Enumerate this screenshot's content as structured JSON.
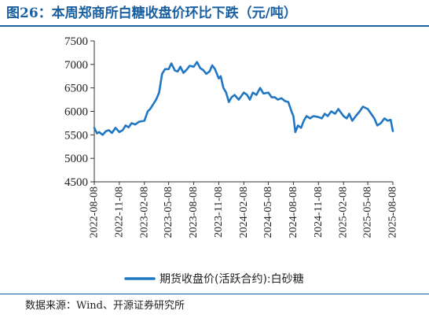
{
  "header": {
    "title": "图26：本周郑商所白糖收盘价环比下跌（元/吨）"
  },
  "footer": {
    "source": "数据来源：Wind、开源证券研究所"
  },
  "colors": {
    "accent": "#1a5fa0",
    "series": "#1f77c4"
  },
  "chart_data": {
    "type": "line",
    "title": "",
    "xlabel": "",
    "ylabel": "",
    "ylim": [
      4500,
      7500
    ],
    "yticks": [
      4500,
      5000,
      5500,
      6000,
      6500,
      7000,
      7500
    ],
    "xlim": [
      "2022-08-08",
      "2025-08-08"
    ],
    "xticks": [
      "2022-08-08",
      "2022-11-08",
      "2023-02-08",
      "2023-05-08",
      "2023-08-08",
      "2023-11-08",
      "2024-02-08",
      "2024-05-08",
      "2024-08-08",
      "2024-11-08",
      "2025-02-08",
      "2025-05-08",
      "2025-08-08"
    ],
    "grid": false,
    "legend_position": "bottom",
    "series": [
      {
        "name": "期货收盘价(活跃合约):白砂糖",
        "x": [
          "2022-08-08",
          "2022-08-18",
          "2022-08-26",
          "2022-09-08",
          "2022-09-20",
          "2022-10-01",
          "2022-10-12",
          "2022-10-25",
          "2022-11-08",
          "2022-11-20",
          "2022-12-01",
          "2022-12-12",
          "2022-12-23",
          "2023-01-05",
          "2023-01-20",
          "2023-02-08",
          "2023-02-20",
          "2023-03-01",
          "2023-03-12",
          "2023-03-23",
          "2023-04-03",
          "2023-04-14",
          "2023-04-25",
          "2023-05-08",
          "2023-05-18",
          "2023-05-31",
          "2023-06-10",
          "2023-06-20",
          "2023-07-01",
          "2023-07-12",
          "2023-07-24",
          "2023-08-08",
          "2023-08-20",
          "2023-09-01",
          "2023-09-12",
          "2023-09-23",
          "2023-10-05",
          "2023-10-15",
          "2023-10-25",
          "2023-11-08",
          "2023-11-15",
          "2023-11-25",
          "2023-12-05",
          "2023-12-15",
          "2023-12-25",
          "2024-01-05",
          "2024-01-20",
          "2024-02-08",
          "2024-02-20",
          "2024-03-01",
          "2024-03-12",
          "2024-03-25",
          "2024-04-08",
          "2024-04-20",
          "2024-05-08",
          "2024-05-20",
          "2024-06-01",
          "2024-06-12",
          "2024-06-25",
          "2024-07-08",
          "2024-07-20",
          "2024-08-01",
          "2024-08-08",
          "2024-08-15",
          "2024-08-25",
          "2024-09-05",
          "2024-09-15",
          "2024-09-25",
          "2024-10-08",
          "2024-10-20",
          "2024-11-08",
          "2024-11-20",
          "2024-12-01",
          "2024-12-12",
          "2024-12-25",
          "2025-01-08",
          "2025-01-20",
          "2025-02-08",
          "2025-02-20",
          "2025-03-01",
          "2025-03-12",
          "2025-03-25",
          "2025-04-08",
          "2025-04-20",
          "2025-05-08",
          "2025-05-20",
          "2025-06-01",
          "2025-06-12",
          "2025-06-25",
          "2025-07-08",
          "2025-07-20",
          "2025-07-31",
          "2025-08-08"
        ],
        "values": [
          5650,
          5530,
          5560,
          5500,
          5580,
          5600,
          5540,
          5650,
          5560,
          5600,
          5700,
          5660,
          5750,
          5720,
          5780,
          5800,
          6000,
          6050,
          6150,
          6250,
          6400,
          6800,
          6900,
          6900,
          7020,
          6870,
          6850,
          6950,
          6820,
          6880,
          6970,
          6950,
          7050,
          6920,
          6880,
          6800,
          6850,
          6980,
          6900,
          6700,
          6750,
          6500,
          6400,
          6200,
          6300,
          6350,
          6250,
          6400,
          6350,
          6250,
          6400,
          6350,
          6500,
          6380,
          6400,
          6300,
          6300,
          6250,
          6280,
          6220,
          6200,
          6000,
          5900,
          5560,
          5700,
          5650,
          5800,
          5900,
          5850,
          5900,
          5880,
          5850,
          5950,
          5900,
          6000,
          5950,
          6050,
          5900,
          5850,
          5950,
          5800,
          5900,
          6000,
          6100,
          6050,
          5950,
          5850,
          5700,
          5750,
          5850,
          5800,
          5820,
          5580
        ]
      }
    ]
  }
}
